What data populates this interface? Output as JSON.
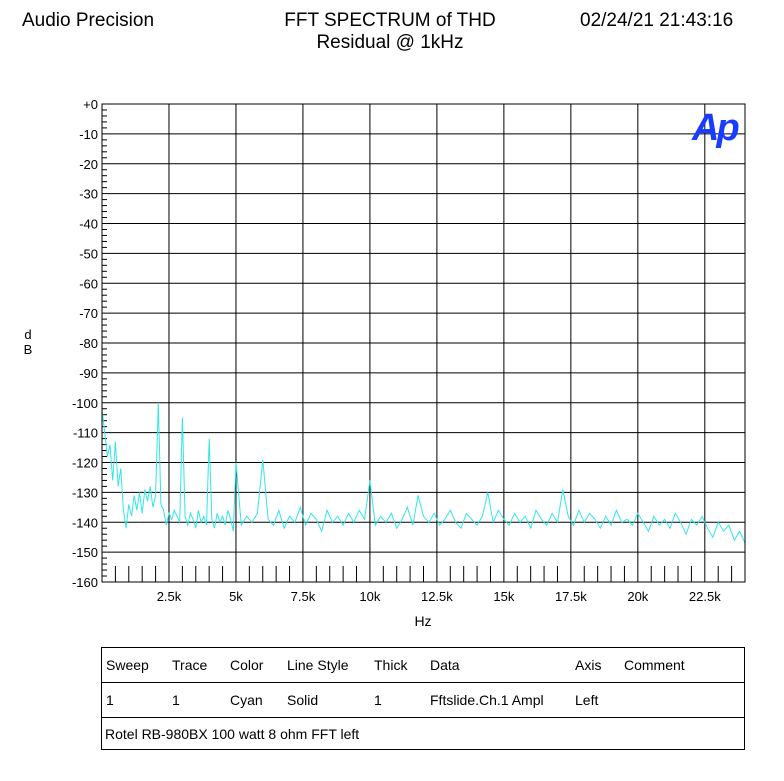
{
  "header": {
    "left": "Audio Precision",
    "title_line1": "FFT SPECTRUM of THD",
    "title_line2": "Residual @ 1kHz",
    "timestamp": "02/24/21 21:43:16"
  },
  "logo": "Ap",
  "colors": {
    "trace": "#33E6E6",
    "grid": "#000000",
    "logo": "#1a3cff"
  },
  "chart_data": {
    "type": "line",
    "xlabel": "Hz",
    "ylabel": "dB",
    "xlim": [
      0,
      24000
    ],
    "ylim": [
      -160,
      0
    ],
    "grid": true,
    "x_ticks": [
      {
        "v": 2500,
        "label": "2.5k"
      },
      {
        "v": 5000,
        "label": "5k"
      },
      {
        "v": 7500,
        "label": "7.5k"
      },
      {
        "v": 10000,
        "label": "10k"
      },
      {
        "v": 12500,
        "label": "12.5k"
      },
      {
        "v": 15000,
        "label": "15k"
      },
      {
        "v": 17500,
        "label": "17.5k"
      },
      {
        "v": 20000,
        "label": "20k"
      },
      {
        "v": 22500,
        "label": "22.5k"
      }
    ],
    "y_ticks": [
      {
        "v": 0,
        "label": "+0"
      },
      {
        "v": -10,
        "label": "-10"
      },
      {
        "v": -20,
        "label": "-20"
      },
      {
        "v": -30,
        "label": "-30"
      },
      {
        "v": -40,
        "label": "-40"
      },
      {
        "v": -50,
        "label": "-50"
      },
      {
        "v": -60,
        "label": "-60"
      },
      {
        "v": -70,
        "label": "-70"
      },
      {
        "v": -80,
        "label": "-80"
      },
      {
        "v": -90,
        "label": "-90"
      },
      {
        "v": -100,
        "label": "-100"
      },
      {
        "v": -110,
        "label": "-110"
      },
      {
        "v": -120,
        "label": "-120"
      },
      {
        "v": -130,
        "label": "-130"
      },
      {
        "v": -140,
        "label": "-140"
      },
      {
        "v": -150,
        "label": "-150"
      },
      {
        "v": -160,
        "label": "-160"
      }
    ],
    "series": [
      {
        "color": "Cyan",
        "x": [
          0,
          100,
          200,
          300,
          400,
          500,
          600,
          700,
          800,
          900,
          1000,
          1100,
          1200,
          1300,
          1400,
          1500,
          1600,
          1700,
          1800,
          1900,
          2000,
          2100,
          2200,
          2300,
          2400,
          2500,
          2600,
          2700,
          2800,
          2900,
          3000,
          3100,
          3200,
          3300,
          3400,
          3500,
          3600,
          3700,
          3800,
          3900,
          4000,
          4100,
          4200,
          4300,
          4400,
          4500,
          4600,
          4700,
          4800,
          4900,
          5000,
          5200,
          5400,
          5600,
          5800,
          6000,
          6200,
          6400,
          6600,
          6800,
          7000,
          7200,
          7400,
          7600,
          7800,
          8000,
          8200,
          8400,
          8600,
          8800,
          9000,
          9200,
          9400,
          9600,
          9800,
          10000,
          10200,
          10400,
          10600,
          10800,
          11000,
          11200,
          11400,
          11600,
          11800,
          12000,
          12200,
          12400,
          12600,
          12800,
          13000,
          13200,
          13400,
          13600,
          13800,
          14000,
          14200,
          14400,
          14600,
          14800,
          15000,
          15200,
          15400,
          15600,
          15800,
          16000,
          16200,
          16400,
          16600,
          16800,
          17000,
          17200,
          17400,
          17600,
          17800,
          18000,
          18200,
          18400,
          18600,
          18800,
          19000,
          19200,
          19400,
          19600,
          19800,
          20000,
          20200,
          20400,
          20600,
          20800,
          21000,
          21200,
          21400,
          21600,
          21800,
          22000,
          22200,
          22400,
          22600,
          22800,
          23000,
          23200,
          23400,
          23600,
          23800,
          24000
        ],
        "y": [
          -102,
          -110,
          -118,
          -114,
          -126,
          -113,
          -128,
          -122,
          -136,
          -142,
          -134,
          -138,
          -131,
          -136,
          -130,
          -137,
          -129,
          -133,
          -128,
          -135,
          -131,
          -100,
          -134,
          -136,
          -141,
          -137,
          -139,
          -136,
          -138,
          -140,
          -105,
          -138,
          -141,
          -137,
          -139,
          -142,
          -136,
          -140,
          -138,
          -141,
          -112,
          -139,
          -142,
          -137,
          -140,
          -138,
          -141,
          -136,
          -139,
          -143,
          -120,
          -141,
          -138,
          -140,
          -137,
          -119,
          -139,
          -141,
          -136,
          -142,
          -138,
          -140,
          -135,
          -141,
          -137,
          -139,
          -143,
          -136,
          -140,
          -138,
          -141,
          -137,
          -140,
          -136,
          -139,
          -126,
          -141,
          -138,
          -140,
          -137,
          -142,
          -139,
          -135,
          -141,
          -131,
          -138,
          -140,
          -137,
          -141,
          -139,
          -136,
          -140,
          -142,
          -137,
          -139,
          -141,
          -138,
          -130,
          -140,
          -136,
          -139,
          -141,
          -137,
          -140,
          -138,
          -142,
          -136,
          -139,
          -141,
          -137,
          -140,
          -129,
          -138,
          -141,
          -136,
          -140,
          -137,
          -139,
          -142,
          -138,
          -141,
          -136,
          -140,
          -139,
          -141,
          -137,
          -140,
          -143,
          -138,
          -141,
          -139,
          -142,
          -137,
          -140,
          -144,
          -139,
          -141,
          -138,
          -142,
          -145,
          -140,
          -143,
          -141,
          -146,
          -143,
          -147
        ]
      }
    ]
  },
  "legend": {
    "headers": [
      "Sweep",
      "Trace",
      "Color",
      "Line Style",
      "Thick",
      "Data",
      "Axis",
      "Comment"
    ],
    "row": [
      "1",
      "1",
      "Cyan",
      "Solid",
      "1",
      "Fftslide.Ch.1 Ampl",
      "Left",
      ""
    ],
    "comment": "Rotel RB-980BX 100 watt 8 ohm FFT left"
  }
}
